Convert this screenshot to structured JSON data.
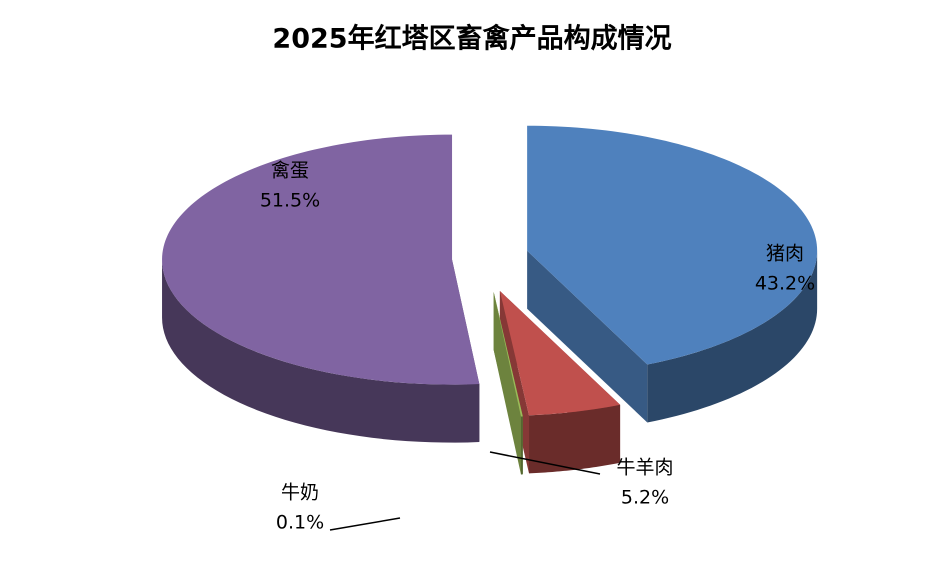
{
  "chart_data": {
    "type": "pie",
    "title": "2025年红塔区畜禽产品构成情况",
    "categories": [
      "猪肉",
      "牛羊肉",
      "牛奶",
      "禽蛋"
    ],
    "values": [
      43.2,
      5.2,
      0.1,
      51.5
    ],
    "value_labels": [
      "43.2%",
      "5.2%",
      "0.1%",
      "51.5%"
    ],
    "colors": [
      "#4f81bd",
      "#c0504d",
      "#9bbb59",
      "#8064a2"
    ]
  }
}
